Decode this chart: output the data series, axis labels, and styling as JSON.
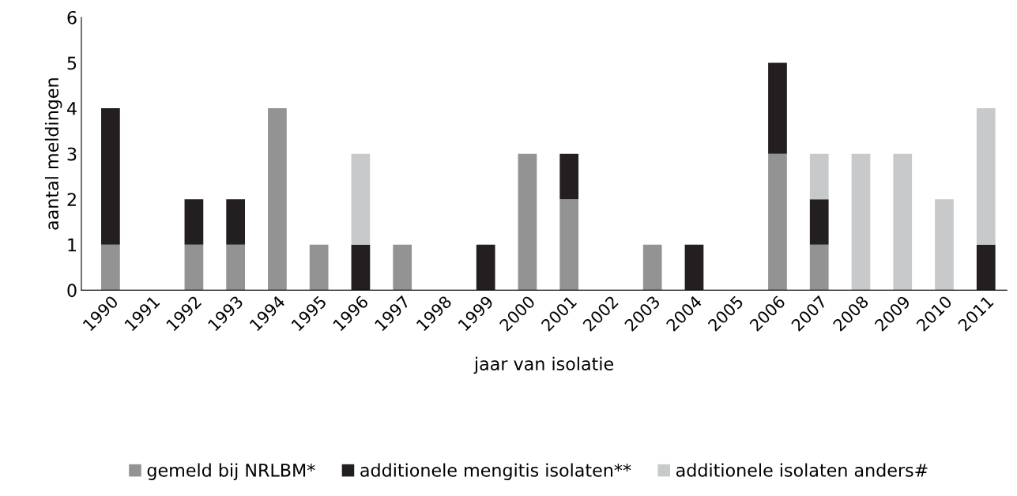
{
  "chart_data": {
    "type": "bar",
    "stacked": true,
    "xlabel": "jaar van isolatie",
    "ylabel": "aantal meldingen",
    "categories": [
      "1990",
      "1991",
      "1992",
      "1993",
      "1994",
      "1995",
      "1996",
      "1997",
      "1998",
      "1999",
      "2000",
      "2001",
      "2002",
      "2003",
      "2004",
      "2005",
      "2006",
      "2007",
      "2008",
      "2009",
      "2010",
      "2011"
    ],
    "series": [
      {
        "name": "gemeld bij NRLBM*",
        "color": "#939393",
        "values": [
          1,
          0,
          1,
          1,
          4,
          1,
          0,
          1,
          0,
          0,
          3,
          2,
          0,
          1,
          0,
          0,
          3,
          1,
          0,
          0,
          0,
          0
        ]
      },
      {
        "name": "additionele mengitis isolaten**",
        "color": "#231f20",
        "values": [
          3,
          0,
          1,
          1,
          0,
          0,
          1,
          0,
          0,
          1,
          0,
          1,
          0,
          0,
          1,
          0,
          2,
          1,
          0,
          0,
          0,
          1
        ]
      },
      {
        "name": "additionele isolaten anders#",
        "color": "#c8c9ca",
        "values": [
          0,
          0,
          0,
          0,
          0,
          0,
          2,
          0,
          0,
          0,
          0,
          0,
          0,
          0,
          0,
          0,
          0,
          1,
          3,
          3,
          2,
          3
        ]
      }
    ],
    "ylim": [
      0,
      6
    ],
    "yticks": [
      0,
      1,
      2,
      3,
      4,
      5,
      6
    ],
    "grid": false,
    "legend": "bottom"
  }
}
